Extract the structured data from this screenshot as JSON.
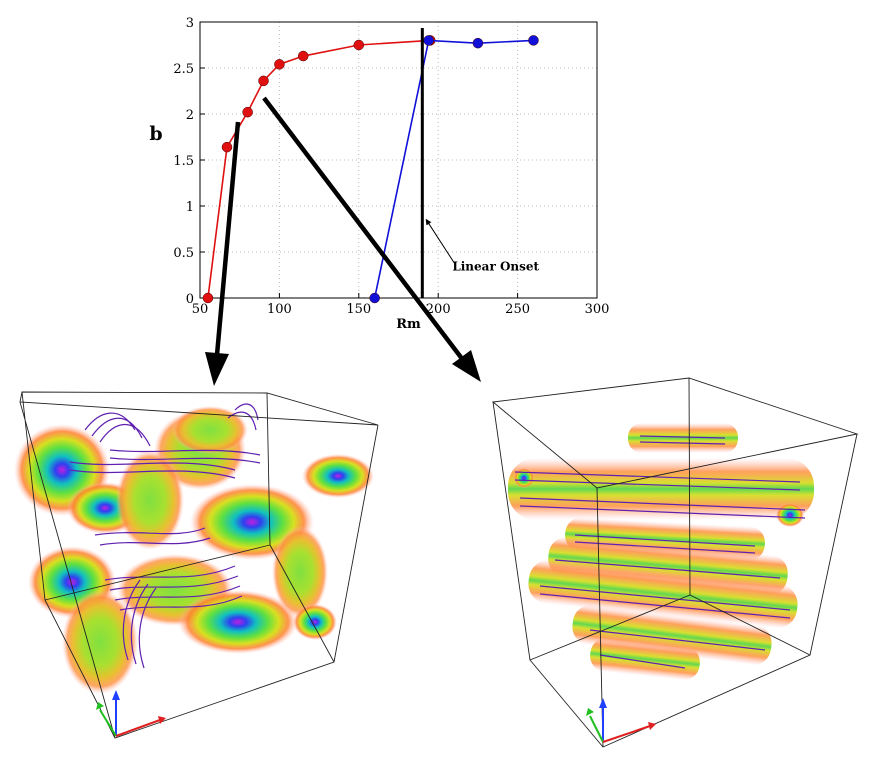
{
  "chart_data": {
    "type": "line",
    "xlabel": "Rm",
    "ylabel": "b",
    "xlim": [
      50,
      300
    ],
    "ylim": [
      0,
      3
    ],
    "x_ticks": [
      50,
      100,
      150,
      200,
      250,
      300
    ],
    "y_ticks": [
      0,
      0.5,
      1,
      1.5,
      2,
      2.5,
      3
    ],
    "x_tick_labels": [
      "50",
      "100",
      "150",
      "200",
      "250",
      "300"
    ],
    "y_tick_labels": [
      "0",
      "0.5",
      "1",
      "1.5",
      "2",
      "2.5",
      "3"
    ],
    "grid": true,
    "series": [
      {
        "color": "#e01010",
        "x": [
          55,
          67,
          80,
          90,
          100,
          115,
          150,
          195
        ],
        "y": [
          0,
          1.64,
          2.02,
          2.36,
          2.54,
          2.63,
          2.75,
          2.8
        ]
      },
      {
        "color": "#1010d8",
        "x": [
          160,
          194,
          225,
          260
        ],
        "y": [
          0,
          2.8,
          2.77,
          2.8
        ]
      }
    ],
    "annotations": [
      {
        "text": "Linear Onset",
        "x_marker": 190
      }
    ]
  }
}
